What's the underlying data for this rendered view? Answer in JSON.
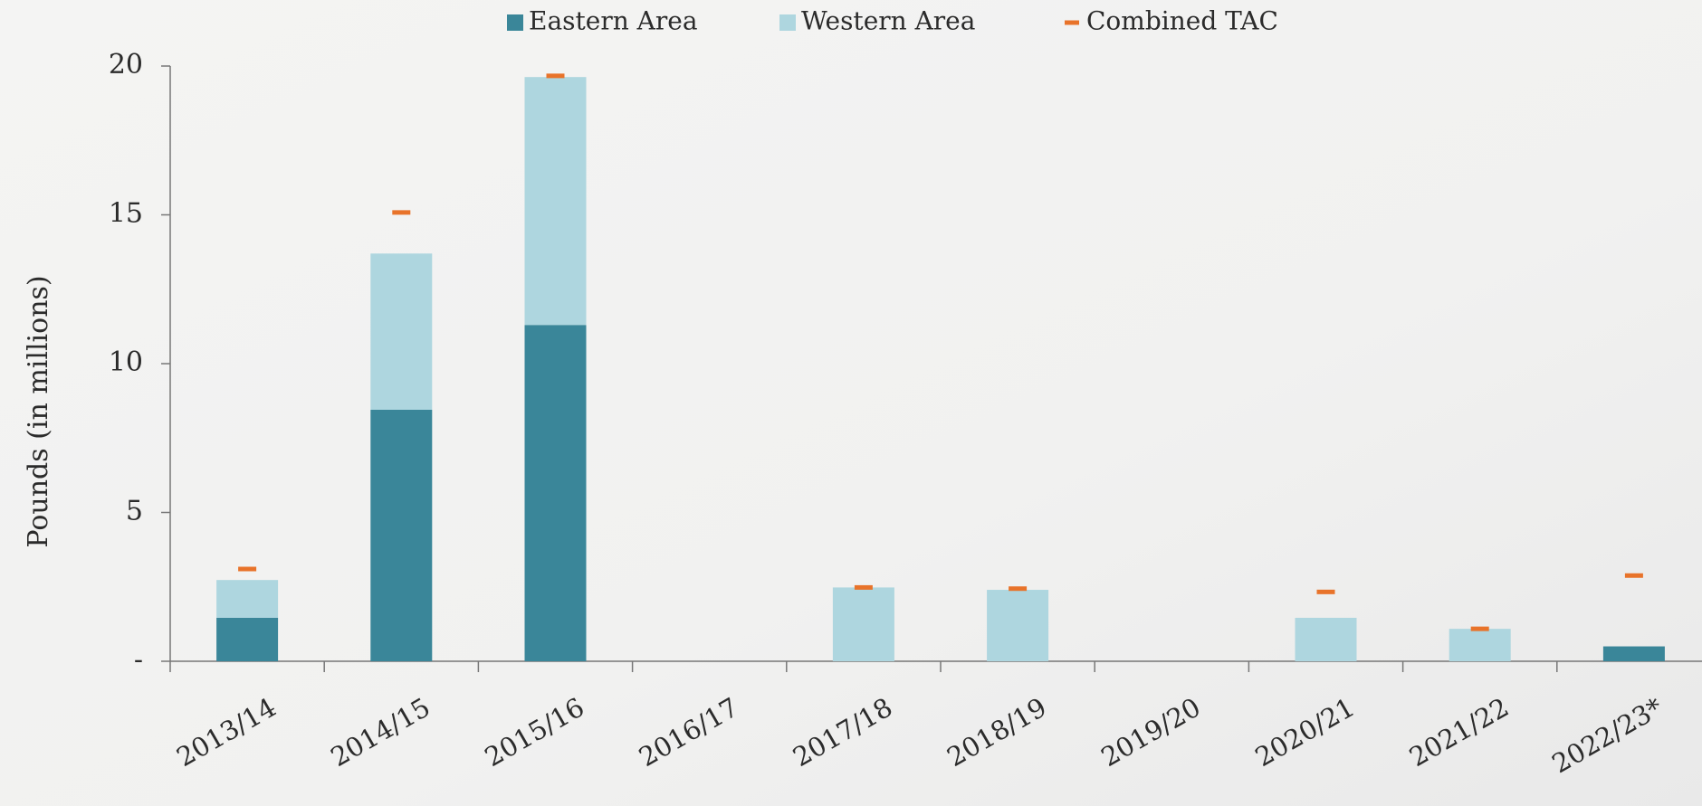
{
  "chart_data": {
    "type": "bar",
    "stacked": true,
    "ylabel": "Pounds (in millions)",
    "categories": [
      "2013/14",
      "2014/15",
      "2015/16",
      "2016/17",
      "2017/18",
      "2018/19",
      "2019/20",
      "2020/21",
      "2021/22",
      "2022/23*"
    ],
    "series": [
      {
        "name": "Eastern Area",
        "color": "#3a8699",
        "values": [
          1.46,
          8.45,
          11.3,
          0,
          0,
          0,
          0,
          0,
          0,
          0.5
        ]
      },
      {
        "name": "Western Area",
        "color": "#aed6df",
        "values": [
          1.27,
          5.25,
          8.33,
          0,
          2.48,
          2.4,
          0,
          1.46,
          1.09,
          0
        ]
      },
      {
        "name": "Combined TAC",
        "color": "#e8732a",
        "kind": "marker",
        "values": [
          3.1,
          15.08,
          19.67,
          null,
          2.48,
          2.44,
          null,
          2.33,
          1.09,
          2.88
        ]
      }
    ],
    "ylim": [
      0,
      20
    ],
    "yticks": [
      {
        "value": 0,
        "label": "-"
      },
      5,
      10,
      15,
      20
    ],
    "legend": "top"
  }
}
